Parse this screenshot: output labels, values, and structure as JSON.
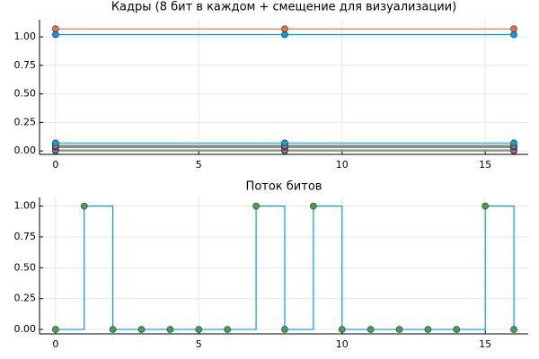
{
  "chart_data": [
    {
      "type": "line",
      "title": "Кадры (8 бит в каждом + смещение для визуализации)",
      "x": [
        0,
        8,
        16
      ],
      "series": [
        {
          "color": "#009AFA",
          "values": [
            1.02,
            1.02,
            1.02
          ]
        },
        {
          "color": "#E36F47",
          "values": [
            1.07,
            1.07,
            1.07
          ]
        },
        {
          "color": "#3EA44E",
          "values": [
            0.0,
            0.0,
            0.0
          ]
        },
        {
          "color": "#C371D2",
          "values": [
            0.01,
            0.01,
            0.01
          ]
        },
        {
          "color": "#AC8E18",
          "values": [
            0.03,
            0.03,
            0.03
          ]
        },
        {
          "color": "#00AAAE",
          "values": [
            0.04,
            0.04,
            0.04
          ]
        },
        {
          "color": "#ED5E93",
          "values": [
            0.05,
            0.05,
            0.05
          ]
        },
        {
          "color": "#00A9CD",
          "values": [
            0.07,
            0.07,
            0.07
          ]
        }
      ],
      "markers": true,
      "xlim": [
        -0.56,
        16.5
      ],
      "ylim": [
        -0.03,
        1.15
      ],
      "xticks": [
        0,
        5,
        10,
        15
      ],
      "yticks": [
        {
          "value": 0,
          "label": "0.00"
        },
        {
          "value": 0.25,
          "label": "0.25"
        },
        {
          "value": 0.5,
          "label": "0.50"
        },
        {
          "value": 0.75,
          "label": "0.75"
        },
        {
          "value": 1,
          "label": "1.00"
        }
      ],
      "grid": true
    },
    {
      "type": "step",
      "title": "Поток битов",
      "x": [
        0,
        1,
        2,
        3,
        4,
        5,
        6,
        7,
        8,
        9,
        10,
        11,
        12,
        13,
        14,
        15,
        16
      ],
      "series": [
        {
          "color": "#009AFA",
          "marker_color": "#3EA44E",
          "values": [
            0,
            1,
            0,
            0,
            0,
            0,
            0,
            1,
            0,
            1,
            0,
            0,
            0,
            0,
            0,
            1,
            0
          ]
        }
      ],
      "markers": true,
      "xlim": [
        -0.56,
        16.5
      ],
      "ylim": [
        -0.036,
        1.07
      ],
      "xticks": [
        0,
        5,
        10,
        15
      ],
      "yticks": [
        {
          "value": 0,
          "label": "0.00"
        },
        {
          "value": 0.25,
          "label": "0.25"
        },
        {
          "value": 0.5,
          "label": "0.50"
        },
        {
          "value": 0.75,
          "label": "0.75"
        },
        {
          "value": 1,
          "label": "1.00"
        }
      ],
      "grid": true
    }
  ]
}
